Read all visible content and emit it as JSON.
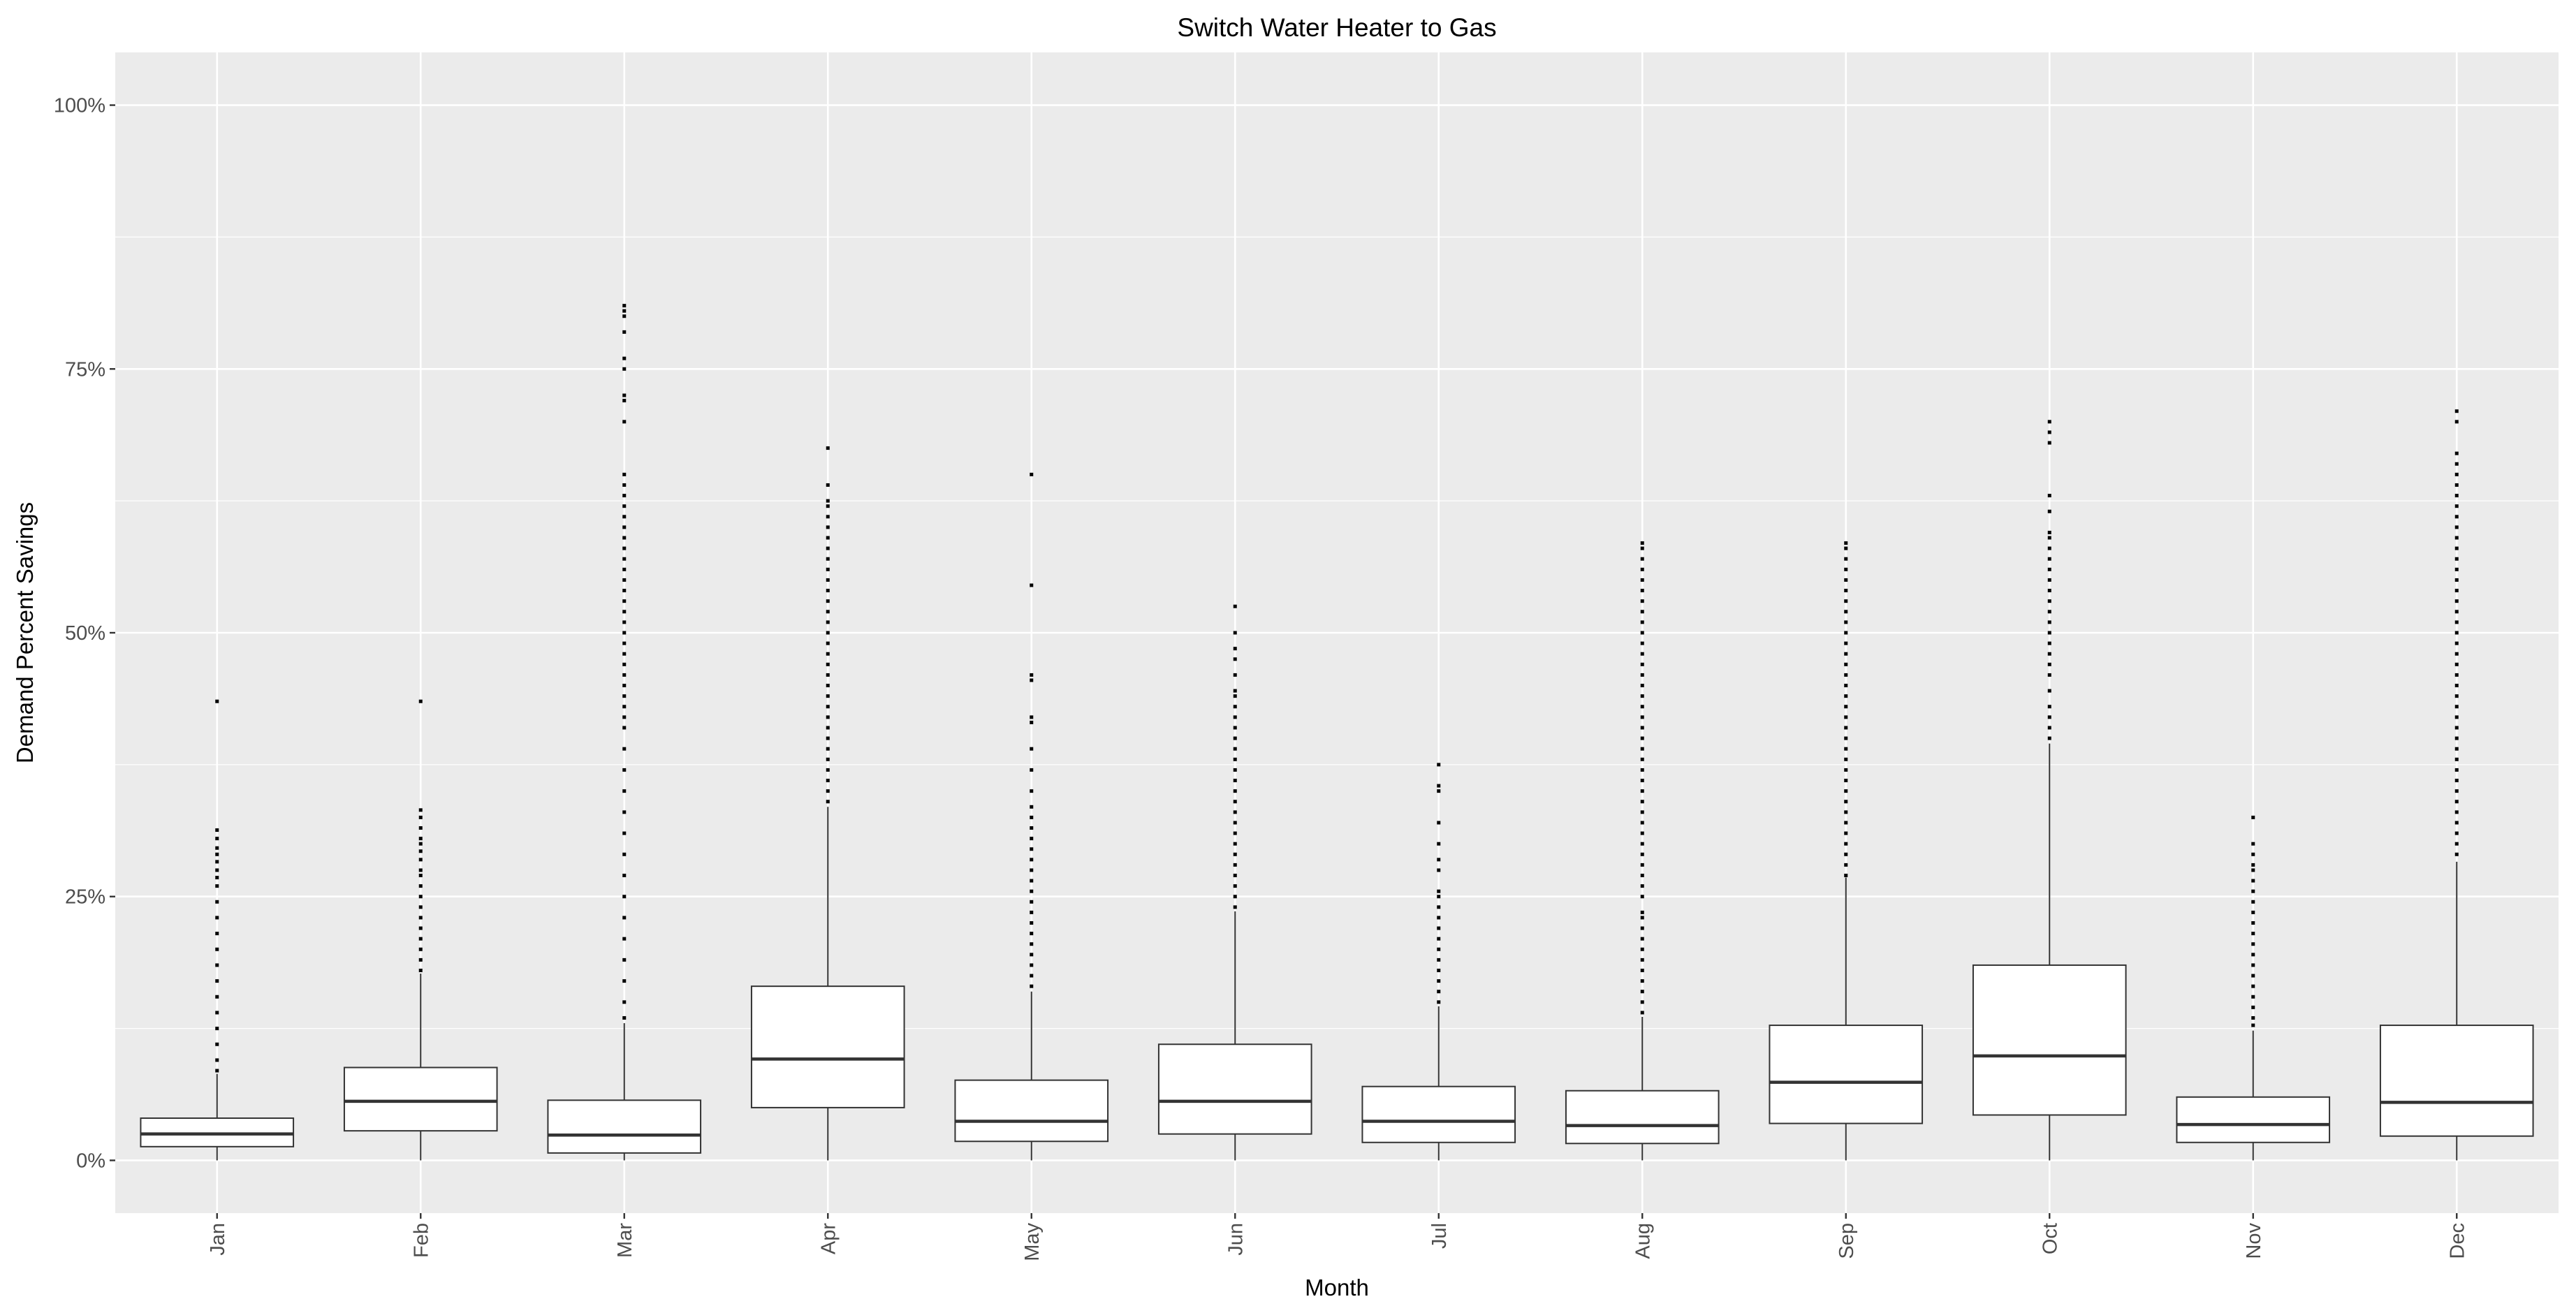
{
  "chart_data": {
    "type": "boxplot",
    "title": "Switch Water Heater to Gas",
    "xlabel": "Month",
    "ylabel": "Demand Percent Savings",
    "ylim": [
      -5,
      105
    ],
    "yticks": [
      0,
      25,
      50,
      75,
      100
    ],
    "ytick_labels": [
      "0%",
      "25%",
      "50%",
      "75%",
      "100%"
    ],
    "x_tick_rotation": "vertical",
    "grid": true,
    "legend": "none",
    "colors": {
      "panel": "#ebebeb",
      "grid": "#ffffff",
      "box_fill": "#ffffff",
      "line": "#333333",
      "outlier": "#000000",
      "tick_label": "#4d4d4d"
    },
    "categories": [
      "Jan",
      "Feb",
      "Mar",
      "Apr",
      "May",
      "Jun",
      "Jul",
      "Aug",
      "Sep",
      "Oct",
      "Nov",
      "Dec"
    ],
    "boxes": [
      {
        "month": "Jan",
        "min": 0,
        "q1": 1.3,
        "median": 2.5,
        "q3": 4.0,
        "whisker_high": 8.2,
        "outliers": [
          8.5,
          9.5,
          11,
          12.5,
          14,
          15.5,
          17,
          18.5,
          20,
          21.5,
          23,
          24.5,
          26,
          26.8,
          27.5,
          28.3,
          29,
          29.6,
          30.5,
          31.3,
          43.5
        ]
      },
      {
        "month": "Feb",
        "min": 0,
        "q1": 2.8,
        "median": 5.6,
        "q3": 8.8,
        "whisker_high": 17.7,
        "outliers": [
          18,
          19,
          20,
          21,
          22,
          23,
          24,
          25,
          26,
          27,
          27.5,
          28.5,
          29.3,
          30,
          30.5,
          31.5,
          32.5,
          33.2,
          43.5
        ]
      },
      {
        "month": "Mar",
        "min": 0,
        "q1": 0.7,
        "median": 2.4,
        "q3": 5.7,
        "whisker_high": 13.0,
        "outliers": [
          13.5,
          15,
          17,
          19,
          21,
          23,
          25,
          27,
          29,
          31,
          33,
          35,
          37,
          39,
          41,
          42,
          43,
          44,
          45,
          46,
          47,
          48,
          49,
          50,
          51,
          52,
          53,
          54,
          55,
          56,
          57,
          58,
          59,
          60,
          61,
          62,
          63,
          64,
          65,
          70,
          72,
          72.5,
          75,
          76,
          78.5,
          80,
          80.5,
          81
        ]
      },
      {
        "month": "Apr",
        "min": 0,
        "q1": 5.0,
        "median": 9.6,
        "q3": 16.5,
        "whisker_high": 33.5,
        "outliers": [
          34,
          35,
          36,
          37,
          38,
          39,
          40,
          41,
          42,
          43,
          44,
          45,
          46,
          47,
          48,
          49,
          50,
          51,
          52,
          53,
          54,
          55,
          56,
          57,
          58,
          59,
          60,
          61,
          62,
          62.5,
          64,
          67.5
        ]
      },
      {
        "month": "May",
        "min": 0,
        "q1": 1.8,
        "median": 3.7,
        "q3": 7.6,
        "whisker_high": 16.0,
        "outliers": [
          16.5,
          17.5,
          18.5,
          19.5,
          20.5,
          21.5,
          22.5,
          23.5,
          24.5,
          25.5,
          26.5,
          27.5,
          28.5,
          29.5,
          30.5,
          31.5,
          32.5,
          33.5,
          35,
          37,
          39,
          41.5,
          42,
          45.5,
          46,
          54.5,
          65
        ]
      },
      {
        "month": "Jun",
        "min": 0,
        "q1": 2.5,
        "median": 5.6,
        "q3": 11.0,
        "whisker_high": 23.6,
        "outliers": [
          24,
          25,
          26,
          27,
          28,
          29,
          30,
          31,
          32,
          33,
          34,
          35,
          36,
          37,
          38,
          39,
          40,
          41,
          42,
          43,
          44,
          44.5,
          46,
          47.5,
          48.5,
          50,
          52.5
        ]
      },
      {
        "month": "Jul",
        "min": 0,
        "q1": 1.7,
        "median": 3.7,
        "q3": 7.0,
        "whisker_high": 14.6,
        "outliers": [
          15,
          16,
          17,
          18,
          19,
          20,
          21,
          22,
          23,
          24,
          25,
          25.5,
          27.5,
          28.5,
          30,
          32,
          35,
          35.5,
          37.5
        ]
      },
      {
        "month": "Aug",
        "min": 0,
        "q1": 1.6,
        "median": 3.3,
        "q3": 6.6,
        "whisker_high": 13.6,
        "outliers": [
          14,
          15,
          16,
          17,
          18,
          19,
          20,
          21,
          22,
          23,
          23.5,
          25,
          26,
          27,
          28,
          29,
          30,
          31,
          32,
          33,
          34,
          35,
          36,
          37,
          38,
          39,
          40,
          41,
          42,
          43,
          44,
          45,
          46,
          47,
          48,
          49,
          50,
          51,
          52,
          53,
          54,
          55,
          56,
          57,
          58,
          58.5
        ]
      },
      {
        "month": "Sep",
        "min": 0,
        "q1": 3.5,
        "median": 7.4,
        "q3": 12.8,
        "whisker_high": 26.8,
        "outliers": [
          27,
          28,
          29,
          30,
          31,
          32,
          33,
          34,
          35,
          36,
          37,
          38,
          39,
          40,
          41,
          42,
          43,
          44,
          45,
          46,
          47,
          48,
          49,
          50,
          51,
          52,
          53,
          54,
          55,
          56,
          57,
          58,
          58.5
        ]
      },
      {
        "month": "Oct",
        "min": 0,
        "q1": 4.3,
        "median": 9.9,
        "q3": 18.5,
        "whisker_high": 39.5,
        "outliers": [
          40,
          41,
          42,
          43,
          44.5,
          46,
          47,
          48,
          49,
          50,
          51,
          52,
          53,
          54,
          55,
          56,
          57,
          58,
          59,
          59.5,
          61.5,
          63,
          68,
          69,
          70
        ]
      },
      {
        "month": "Nov",
        "min": 0,
        "q1": 1.7,
        "median": 3.4,
        "q3": 6.0,
        "whisker_high": 12.3,
        "outliers": [
          12.8,
          13.5,
          14.5,
          15.5,
          16.5,
          17.5,
          18.5,
          19.5,
          20.5,
          21.5,
          22.5,
          23.5,
          24.5,
          25.5,
          26.5,
          27.5,
          28,
          29,
          30,
          32.5
        ]
      },
      {
        "month": "Dec",
        "min": 0,
        "q1": 2.3,
        "median": 5.5,
        "q3": 12.8,
        "whisker_high": 28.3,
        "outliers": [
          29,
          30,
          31,
          32,
          33,
          34,
          35,
          36,
          37,
          38,
          39,
          40,
          41,
          42,
          43,
          44,
          45,
          46,
          47,
          48,
          49,
          50,
          51,
          52,
          53,
          54,
          55,
          56,
          57,
          58,
          59,
          60,
          61,
          62,
          63,
          64,
          65,
          66,
          67,
          70,
          71
        ]
      }
    ]
  }
}
